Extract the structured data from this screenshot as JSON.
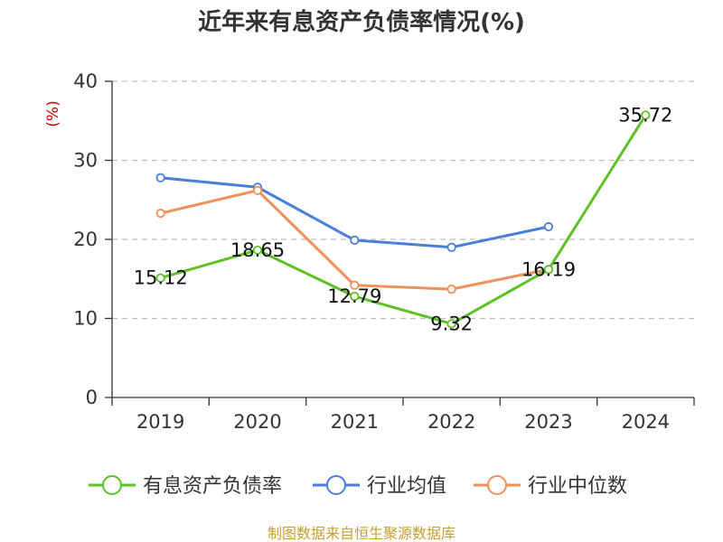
{
  "chart_data": {
    "type": "line",
    "title": "近年来有息资产负债率情况(%)",
    "ylabel": "(%)",
    "xlabel": "",
    "ylim": [
      0,
      40
    ],
    "yticks": [
      0,
      10,
      20,
      30,
      40
    ],
    "categories": [
      "2019",
      "2020",
      "2021",
      "2022",
      "2023",
      "2024"
    ],
    "grid": true,
    "legend_position": "bottom",
    "series": [
      {
        "name": "有息资产负债率",
        "color": "#5dc024",
        "values": [
          15.12,
          18.65,
          12.79,
          9.32,
          16.19,
          35.72
        ],
        "labels": [
          "15.12",
          "18.65",
          "12.79",
          "9.32",
          "16.19",
          "35.72"
        ]
      },
      {
        "name": "行业均值",
        "color": "#4a7fd9",
        "values": [
          27.8,
          26.6,
          19.9,
          19.0,
          21.6,
          null
        ]
      },
      {
        "name": "行业中位数",
        "color": "#f0905a",
        "values": [
          23.3,
          26.2,
          14.2,
          13.7,
          16.2,
          null
        ]
      }
    ]
  },
  "colors": {
    "unit_label": "#cc0000",
    "source": "#c8a030"
  },
  "source": "制图数据来自恒生聚源数据库"
}
